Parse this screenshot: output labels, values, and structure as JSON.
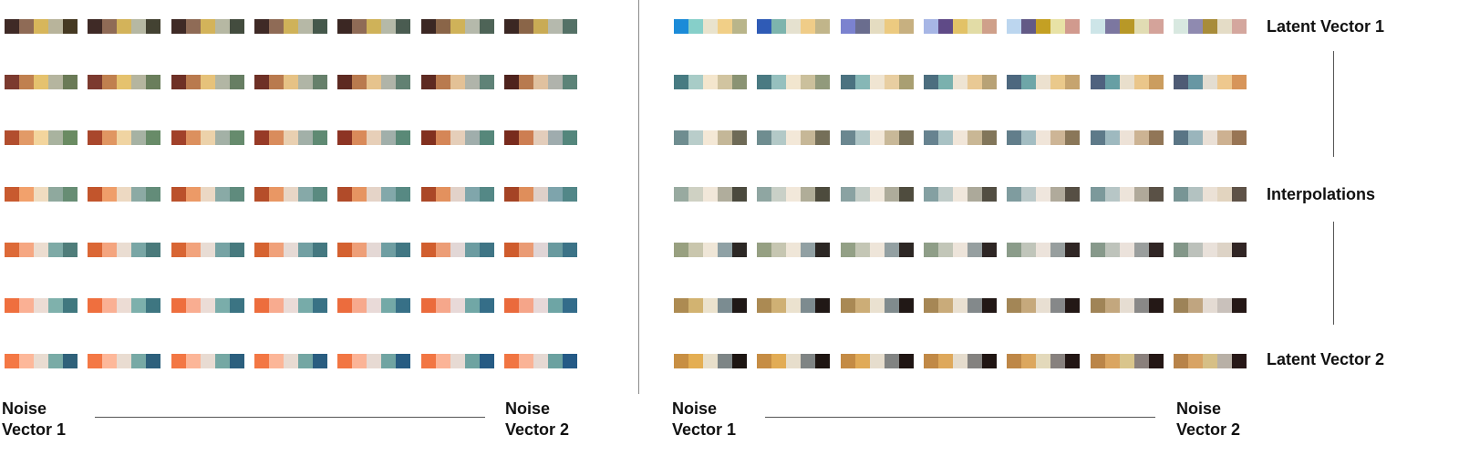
{
  "labels": {
    "noise_vector_1": "Noise\nVector 1",
    "noise_vector_2": "Noise\nVector 2",
    "latent_vector_1": "Latent Vector 1",
    "interpolations": "Interpolations",
    "latent_vector_2": "Latent Vector 2"
  },
  "left_panel": {
    "rows": [
      [
        [
          "#3f2a26",
          "#8f6b56",
          "#d7b65b",
          "#b8b49b",
          "#453922"
        ],
        [
          "#3f2a26",
          "#8f6b56",
          "#d3b35a",
          "#b6b8a3",
          "#434232"
        ],
        [
          "#3f2a26",
          "#8f6b56",
          "#d3b35a",
          "#b6b8a3",
          "#434c3e"
        ],
        [
          "#3f2a26",
          "#8f6b56",
          "#cfb259",
          "#b6b8a6",
          "#45584b"
        ],
        [
          "#3b2723",
          "#8f6b56",
          "#cfb259",
          "#b5b9a8",
          "#4a5c51"
        ],
        [
          "#3b2723",
          "#8a6548",
          "#cfb259",
          "#b5b9ab",
          "#4e6457"
        ],
        [
          "#3b2723",
          "#8a6548",
          "#c9ab55",
          "#b5b9ad",
          "#547166"
        ]
      ],
      [
        [
          "#7c3a2f",
          "#c0804f",
          "#e5c26e",
          "#b5b59f",
          "#6a7a56"
        ],
        [
          "#7c3a2f",
          "#c0804f",
          "#e5c26e",
          "#b5b59f",
          "#6a7e5c"
        ],
        [
          "#6e3026",
          "#b97a4e",
          "#e6c27a",
          "#b2b6a4",
          "#677e63"
        ],
        [
          "#6e3026",
          "#b97a4e",
          "#e6c285",
          "#b0b5a6",
          "#66806b"
        ],
        [
          "#5e2a22",
          "#b97a4e",
          "#e6c38d",
          "#b0b4a8",
          "#628172"
        ],
        [
          "#5e2a22",
          "#b97a4e",
          "#e3c196",
          "#b0b4aa",
          "#5f8277"
        ],
        [
          "#4f231d",
          "#b87a4f",
          "#e0c19f",
          "#b0b3ac",
          "#5c8378"
        ]
      ],
      [
        [
          "#b24e2e",
          "#e29a67",
          "#f3d59d",
          "#a9b39f",
          "#6a8b62"
        ],
        [
          "#a9472c",
          "#e09662",
          "#f0d4a2",
          "#a6b2a3",
          "#688b68"
        ],
        [
          "#a1412a",
          "#dc905e",
          "#ecd2aa",
          "#a3b1a6",
          "#668b6d"
        ],
        [
          "#973a27",
          "#d98c5c",
          "#e9d0b1",
          "#a2b0a8",
          "#5f8a73"
        ],
        [
          "#8d3424",
          "#d98a5a",
          "#e7cfb8",
          "#a1afaa",
          "#5a8977"
        ],
        [
          "#82301f",
          "#d58657",
          "#e5ceb9",
          "#a0aeac",
          "#56877a"
        ],
        [
          "#782b1d",
          "#cd7e52",
          "#e3cdbb",
          "#9facae",
          "#54867c"
        ]
      ],
      [
        [
          "#c85a2f",
          "#f2a16c",
          "#f0dcc0",
          "#8fa99e",
          "#678d74"
        ],
        [
          "#c2552c",
          "#ef9e6a",
          "#edd9c2",
          "#8caaa4",
          "#638c79"
        ],
        [
          "#bb512b",
          "#ec9a67",
          "#ebd8c4",
          "#89aaa6",
          "#5f8b7d"
        ],
        [
          "#b64e2a",
          "#e99764",
          "#e8d6c6",
          "#86a9a8",
          "#5a8a80"
        ],
        [
          "#b14b29",
          "#e69461",
          "#e5d4c8",
          "#83a8aa",
          "#578983"
        ],
        [
          "#ab4827",
          "#e3915e",
          "#e2d2c9",
          "#80a6ab",
          "#548886"
        ],
        [
          "#a54425",
          "#df8e5b",
          "#dfd0c9",
          "#7ea4ac",
          "#528788"
        ]
      ],
      [
        [
          "#dd6a38",
          "#f6a782",
          "#ecddd0",
          "#7eaaa6",
          "#4f7d7a"
        ],
        [
          "#db6735",
          "#f4a57f",
          "#eaddd2",
          "#79a6a5",
          "#4a7a7b"
        ],
        [
          "#d86533",
          "#f2a37c",
          "#e8dcd4",
          "#76a3a4",
          "#477a7e"
        ],
        [
          "#d66331",
          "#f0a17a",
          "#e6dad5",
          "#72a0a3",
          "#447880"
        ],
        [
          "#d46130",
          "#ee9f78",
          "#e4d8d5",
          "#6f9ea2",
          "#417783"
        ],
        [
          "#d15e2e",
          "#ec9d76",
          "#e2d7d6",
          "#6c9ca1",
          "#3f7585"
        ],
        [
          "#cf5c2d",
          "#ea9b74",
          "#e0d5d6",
          "#699a9f",
          "#3c7387"
        ]
      ],
      [
        [
          "#ef6f3e",
          "#fab094",
          "#ecdcd4",
          "#7fb1ac",
          "#40787f"
        ],
        [
          "#ef6f3e",
          "#fab094",
          "#ecdcd4",
          "#7db0ac",
          "#3e7681"
        ],
        [
          "#ee6e3e",
          "#f9ad91",
          "#ebdcd6",
          "#7aadaa",
          "#3b7483"
        ],
        [
          "#ed6d3d",
          "#f8ab8f",
          "#eadbd7",
          "#77aba9",
          "#397285"
        ],
        [
          "#ec6c3d",
          "#f7a98d",
          "#e9dad8",
          "#74a9a7",
          "#377087"
        ],
        [
          "#eb6b3c",
          "#f6a78b",
          "#e8d9d8",
          "#71a7a6",
          "#356e88"
        ],
        [
          "#ea6a3c",
          "#f5a589",
          "#e7d8d8",
          "#6ea5a5",
          "#336c8a"
        ]
      ],
      [
        [
          "#f47845",
          "#fdb89a",
          "#e9dcd1",
          "#79aba6",
          "#2f617a"
        ],
        [
          "#f47845",
          "#fdb89a",
          "#e9dcd1",
          "#77a9a5",
          "#2d607c"
        ],
        [
          "#f37744",
          "#fcb698",
          "#e8dbd2",
          "#75a8a4",
          "#2b5f7e"
        ],
        [
          "#f37744",
          "#fcb698",
          "#e8dbd2",
          "#73a6a3",
          "#295d80"
        ],
        [
          "#f27643",
          "#fbb497",
          "#e7dad3",
          "#70a4a2",
          "#275c82"
        ],
        [
          "#f27643",
          "#fbb497",
          "#e7dad3",
          "#6ea3a1",
          "#265b84"
        ],
        [
          "#f17542",
          "#fab396",
          "#e6d9d3",
          "#6ba1a0",
          "#245a86"
        ]
      ]
    ]
  },
  "right_panel": {
    "rows": [
      [
        [
          "#1b8bd8",
          "#86cfc9",
          "#e9e3cd",
          "#f1cf87",
          "#b9b58a"
        ],
        [
          "#2f5bb6",
          "#7db4ad",
          "#e5e1cf",
          "#efcc88",
          "#c1b58a"
        ],
        [
          "#7b82cf",
          "#6a6d8e",
          "#e4dcc1",
          "#ecca80",
          "#c7b080"
        ],
        [
          "#a7b6e5",
          "#5f4a87",
          "#e2c267",
          "#e2dca6",
          "#cfa08a"
        ],
        [
          "#bcd6ef",
          "#625a86",
          "#c4a023",
          "#e8e2a6",
          "#d19a8e"
        ],
        [
          "#cde5e8",
          "#7c77a0",
          "#b89827",
          "#e1dcb3",
          "#d4a39a"
        ],
        [
          "#d8e8e0",
          "#8f8ab0",
          "#a88c3a",
          "#e4dcc6",
          "#d4a79e"
        ]
      ],
      [
        [
          "#477b82",
          "#a8ccc7",
          "#f4e6cd",
          "#d1c4a0",
          "#8a9373"
        ],
        [
          "#4a7a82",
          "#96c0be",
          "#f2e6cf",
          "#cbc09c",
          "#919a7c"
        ],
        [
          "#4b7280",
          "#86b7b6",
          "#f0e5d2",
          "#e8cea1",
          "#a99f72"
        ],
        [
          "#4c6e7f",
          "#7ab1ae",
          "#eee4d3",
          "#e9c994",
          "#b8a276"
        ],
        [
          "#4d687f",
          "#6ea6a8",
          "#ece1cf",
          "#eac98b",
          "#c6a46f"
        ],
        [
          "#4f627f",
          "#679fa4",
          "#e9dfcc",
          "#eac68a",
          "#cb9d5f"
        ],
        [
          "#4e5b75",
          "#6897a3",
          "#e3ddd1",
          "#eec88e",
          "#d7955a"
        ]
      ],
      [
        [
          "#6f8d90",
          "#b9cdca",
          "#f4e8d6",
          "#c4b798",
          "#6e6a56"
        ],
        [
          "#6f8d90",
          "#b3c9c7",
          "#f3e8d8",
          "#c6b797",
          "#756f58"
        ],
        [
          "#6b8790",
          "#aec5c6",
          "#f2e7d8",
          "#c8b898",
          "#7b735a"
        ],
        [
          "#678390",
          "#a9c2c4",
          "#f1e6d9",
          "#c9b795",
          "#82765a"
        ],
        [
          "#627e8b",
          "#a3bdc2",
          "#f0e5d9",
          "#cdb596",
          "#8a7759"
        ],
        [
          "#5e7a89",
          "#9eb9bf",
          "#ede2d7",
          "#ccb393",
          "#917657"
        ],
        [
          "#5a7585",
          "#9ab5bc",
          "#eae0d6",
          "#cdb191",
          "#987554"
        ]
      ],
      [
        [
          "#98aaa0",
          "#cfd1c3",
          "#f1e7d9",
          "#b0ad9c",
          "#4b4a3e"
        ],
        [
          "#8fa6a2",
          "#c9d0c7",
          "#f2e8da",
          "#b0ad98",
          "#4d4b3d"
        ],
        [
          "#8aa2a2",
          "#c5cec8",
          "#f1e8dc",
          "#aeac9b",
          "#4f4c3e"
        ],
        [
          "#84a0a2",
          "#c0ccc9",
          "#f0e7dc",
          "#aca99a",
          "#524e42"
        ],
        [
          "#7f9c9f",
          "#bbc9c9",
          "#efe6dd",
          "#b0aa9b",
          "#564f44"
        ],
        [
          "#7c999b",
          "#b7c6c6",
          "#ede4da",
          "#b0a99a",
          "#5a5146"
        ],
        [
          "#789595",
          "#b3c2c1",
          "#ebe1d6",
          "#e2d4bf",
          "#5e5247"
        ]
      ],
      [
        [
          "#98a080",
          "#c9c6ad",
          "#efe6d7",
          "#8fa1a5",
          "#2c2825"
        ],
        [
          "#96a083",
          "#c6c6b1",
          "#efe6d8",
          "#91a0a3",
          "#2c2724"
        ],
        [
          "#93a086",
          "#c4c6b5",
          "#eee5d9",
          "#93a0a2",
          "#2d2724"
        ],
        [
          "#8f9e88",
          "#c2c6b8",
          "#ede4da",
          "#969fa0",
          "#2e2624"
        ],
        [
          "#8b9c8a",
          "#c0c5ba",
          "#ece3db",
          "#979e9e",
          "#2f2624"
        ],
        [
          "#87998b",
          "#bec3bb",
          "#ebe2db",
          "#9a9e9d",
          "#302524"
        ],
        [
          "#839789",
          "#bcc1bb",
          "#e9e1da",
          "#ddd3c6",
          "#312524"
        ]
      ],
      [
        [
          "#ad8b52",
          "#d2b371",
          "#ebe2cd",
          "#7b8c91",
          "#1f1816"
        ],
        [
          "#ab8a53",
          "#cfb074",
          "#ebe2cf",
          "#7d8b8f",
          "#201816"
        ],
        [
          "#a98954",
          "#ccad77",
          "#eae1d0",
          "#808b8d",
          "#211816"
        ],
        [
          "#a68755",
          "#c9ab7a",
          "#e9e0d1",
          "#83898b",
          "#221816"
        ],
        [
          "#a38656",
          "#c6a97c",
          "#e8dfd2",
          "#868889",
          "#231816"
        ],
        [
          "#a08457",
          "#c3a77e",
          "#e6ddd2",
          "#898887",
          "#241816"
        ],
        [
          "#9d8358",
          "#c0a580",
          "#e4dbd3",
          "#c9c1bb",
          "#251816"
        ]
      ],
      [
        [
          "#c88f43",
          "#e4ae52",
          "#e8dfca",
          "#7d8586",
          "#1d1512"
        ],
        [
          "#c68d44",
          "#e2ac55",
          "#e7decc",
          "#7f8484",
          "#1e1512"
        ],
        [
          "#c48b45",
          "#e0aa58",
          "#e6ddcd",
          "#818382",
          "#1f1513"
        ],
        [
          "#c18946",
          "#dea85b",
          "#e5dccd",
          "#848280",
          "#201513"
        ],
        [
          "#be8747",
          "#dca75e",
          "#e3d9bb",
          "#87817e",
          "#221614"
        ],
        [
          "#bb8548",
          "#daa561",
          "#d9c58c",
          "#8a807c",
          "#241715"
        ],
        [
          "#b88349",
          "#d8a364",
          "#d6bf86",
          "#b8b0a6",
          "#271817"
        ]
      ]
    ]
  }
}
